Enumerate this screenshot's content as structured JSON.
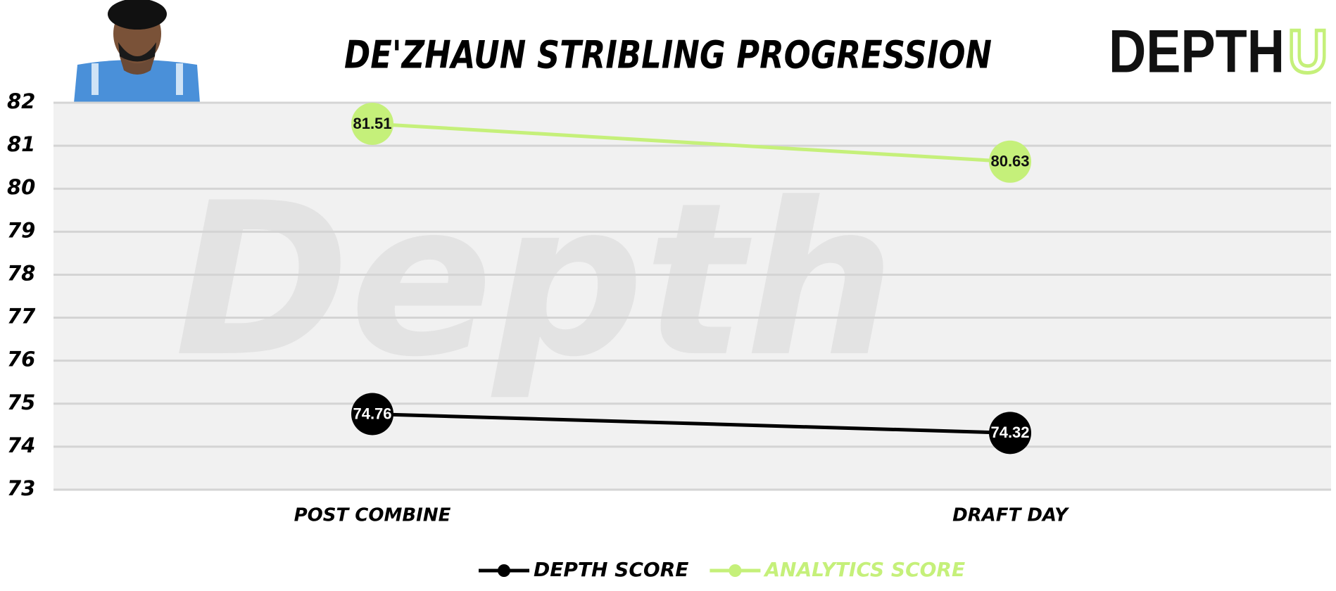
{
  "chart_data": {
    "type": "line",
    "title": "DE'ZHAUN STRIBLING PROGRESSION",
    "logo": {
      "text": "DEPTH",
      "accent": "U"
    },
    "watermark": "Depth",
    "categories": [
      "POST COMBINE",
      "DRAFT DAY"
    ],
    "series": [
      {
        "name": "DEPTH SCORE",
        "color": "#000000",
        "values": [
          74.76,
          74.32
        ]
      },
      {
        "name": "ANALYTICS SCORE",
        "color": "#c5f07a",
        "values": [
          81.51,
          80.63
        ]
      }
    ],
    "ylim": [
      73,
      82
    ],
    "yticks": [
      73,
      74,
      75,
      76,
      77,
      78,
      79,
      80,
      81,
      82
    ],
    "grid": true,
    "legend": "bottom"
  }
}
